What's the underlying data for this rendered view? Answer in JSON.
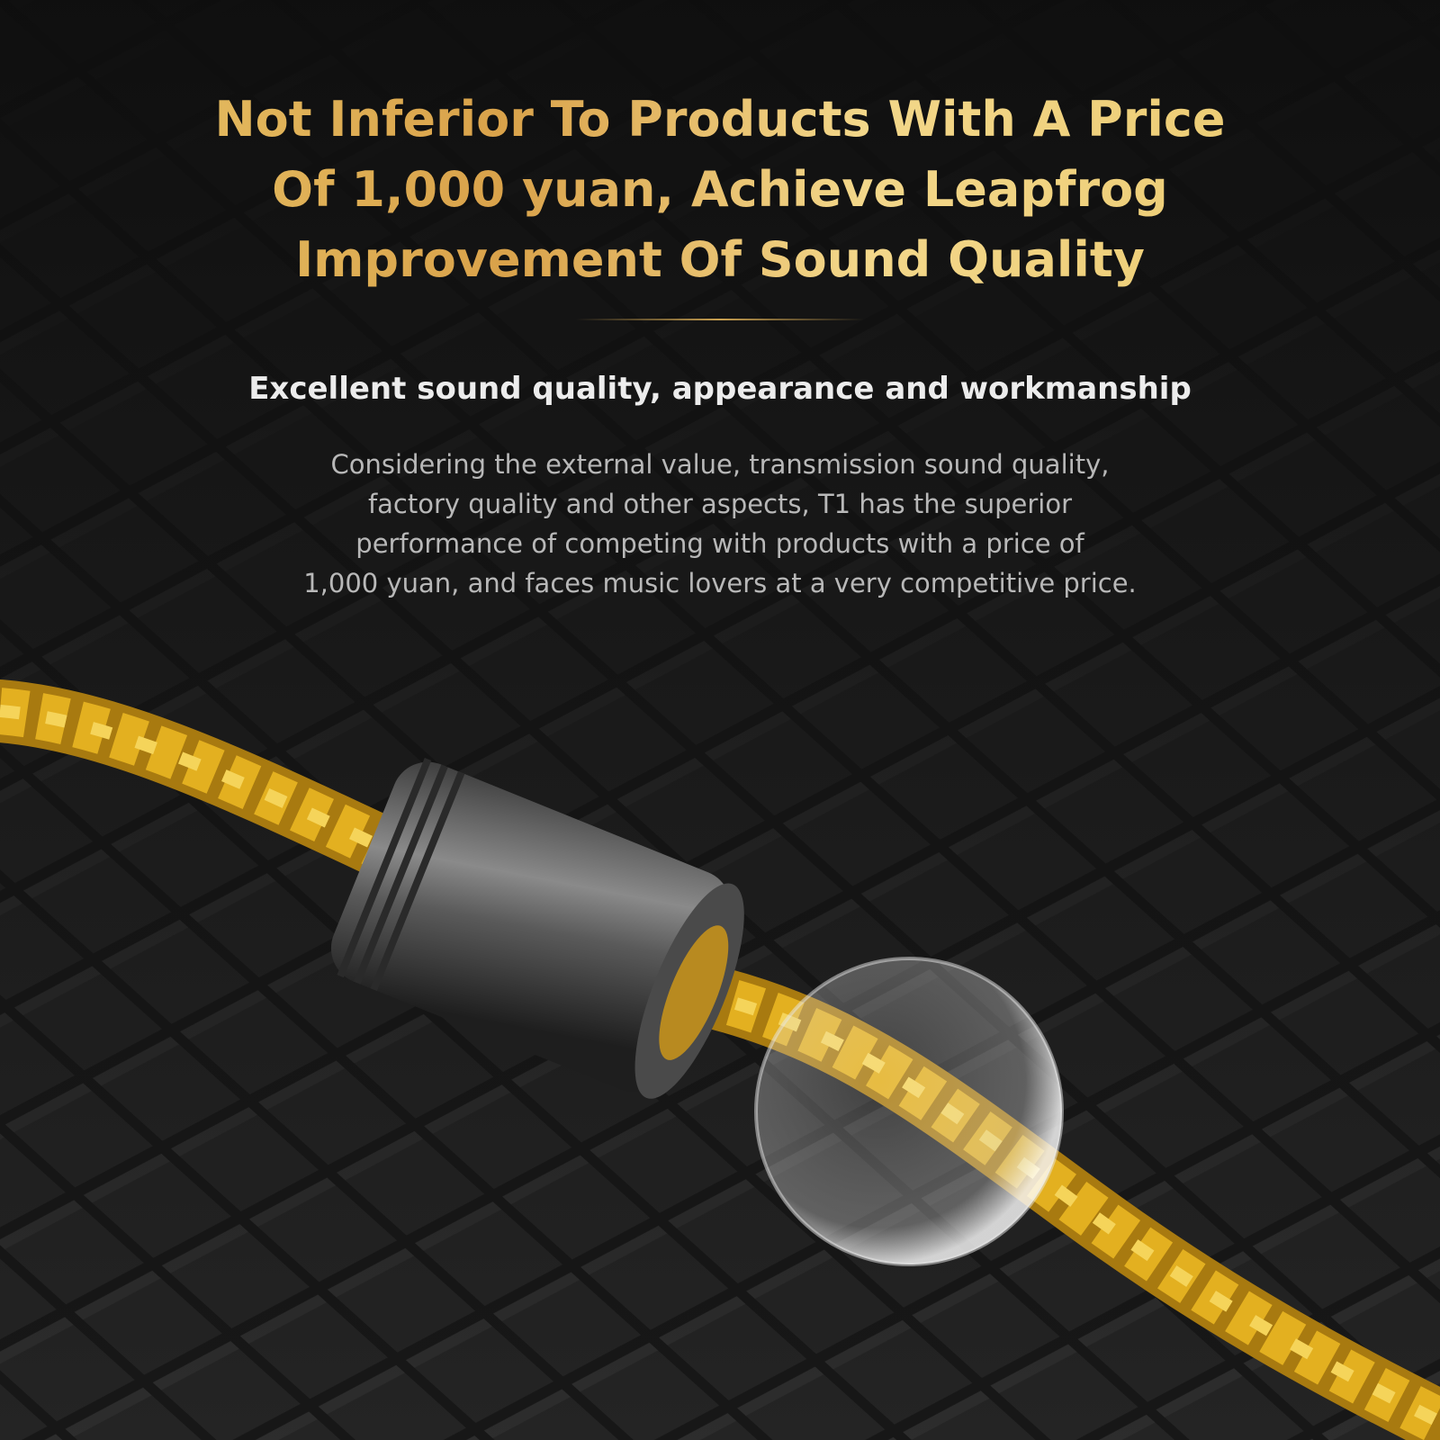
{
  "headline": {
    "lines": [
      "Not Inferior To Products With A Price",
      "Of 1,000 yuan, Achieve Leapfrog",
      "Improvement Of Sound Quality"
    ],
    "color": "#e0b65e"
  },
  "subtitle": "Excellent sound quality, appearance and workmanship",
  "description": {
    "lines": [
      "Considering the external value, transmission sound quality,",
      "factory quality and other aspects, T1 has the superior",
      "performance of competing with products with a price of",
      "1,000 yuan, and faces music lovers at a very competitive price."
    ]
  },
  "colors": {
    "background": "#141414",
    "cable": "#e3b020",
    "accent": "#c9a050"
  }
}
